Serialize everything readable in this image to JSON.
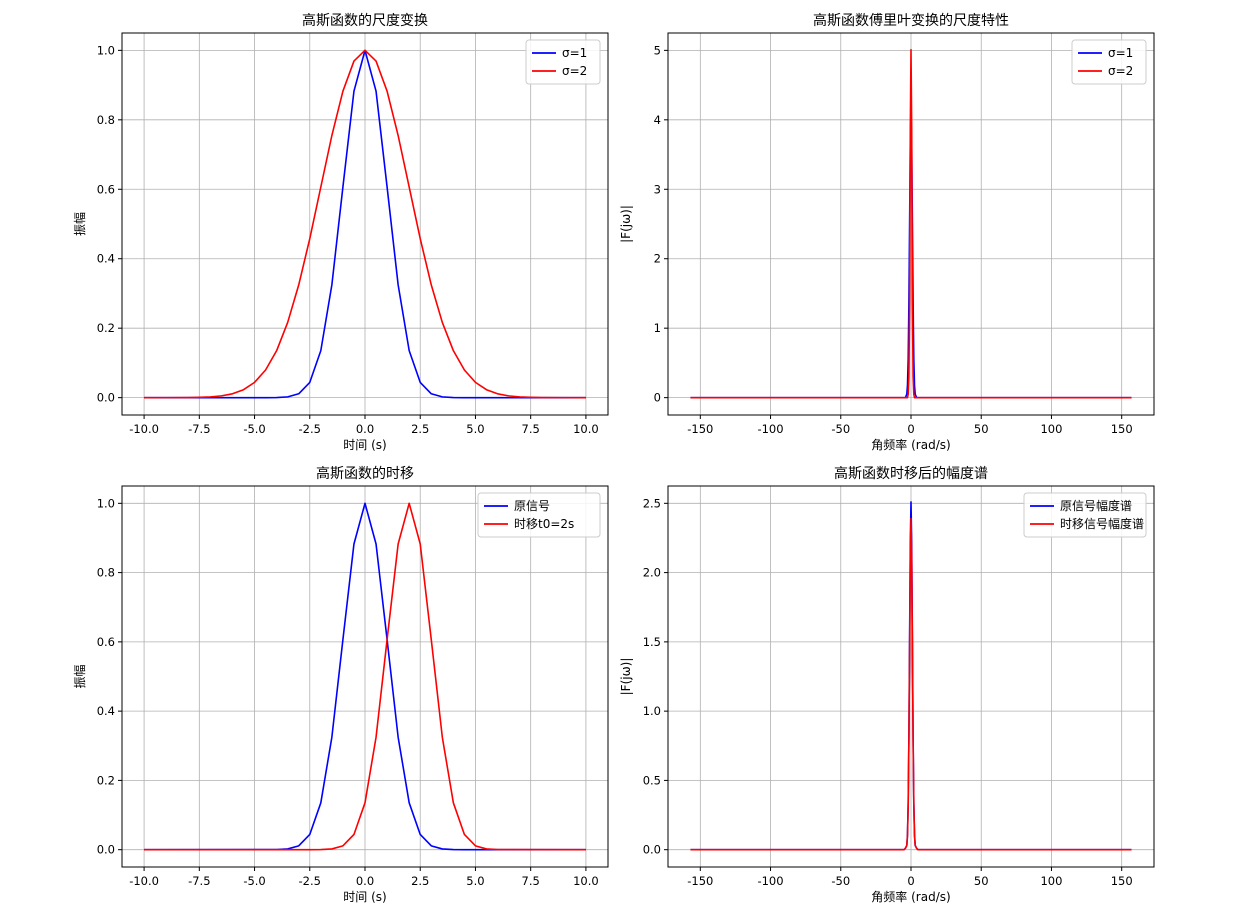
{
  "chart_data": [
    {
      "type": "line",
      "title": "高斯函数的尺度变换",
      "xlabel": "时间 (s)",
      "ylabel": "振幅",
      "xlim": [
        -11,
        11
      ],
      "ylim": [
        -0.05,
        1.05
      ],
      "xticks": [
        -10,
        -7.5,
        -5,
        -2.5,
        0,
        2.5,
        5,
        7.5,
        10
      ],
      "xtick_labels": [
        "-10.0",
        "-7.5",
        "-5.0",
        "-2.5",
        "0.0",
        "2.5",
        "5.0",
        "7.5",
        "10.0"
      ],
      "yticks": [
        0,
        0.2,
        0.4,
        0.6,
        0.8,
        1.0
      ],
      "ytick_labels": [
        "0.0",
        "0.2",
        "0.4",
        "0.6",
        "0.8",
        "1.0"
      ],
      "grid": true,
      "legend_position": "top-right",
      "x": [
        -10,
        -9,
        -8,
        -7.5,
        -7,
        -6.5,
        -6,
        -5.5,
        -5,
        -4.5,
        -4,
        -3.5,
        -3,
        -2.5,
        -2,
        -1.5,
        -1,
        -0.5,
        0,
        0.5,
        1,
        1.5,
        2,
        2.5,
        3,
        3.5,
        4,
        4.5,
        5,
        5.5,
        6,
        6.5,
        7,
        7.5,
        8,
        9,
        10
      ],
      "series": [
        {
          "name": "σ=1",
          "color": "#0000ff",
          "values": [
            0,
            0,
            0,
            0,
            0,
            0,
            0,
            0,
            0,
            0,
            0.0003,
            0.0022,
            0.0111,
            0.0439,
            0.1353,
            0.3247,
            0.6065,
            0.8825,
            1.0,
            0.8825,
            0.6065,
            0.3247,
            0.1353,
            0.0439,
            0.0111,
            0.0022,
            0.0003,
            0,
            0,
            0,
            0,
            0,
            0,
            0,
            0,
            0,
            0
          ]
        },
        {
          "name": "σ=2",
          "color": "#ff0000",
          "values": [
            0.0,
            4e-05,
            0.0003,
            0.0009,
            0.0022,
            0.0051,
            0.0111,
            0.0228,
            0.0439,
            0.0796,
            0.1353,
            0.2165,
            0.3247,
            0.4578,
            0.6065,
            0.7548,
            0.8825,
            0.9692,
            1.0,
            0.9692,
            0.8825,
            0.7548,
            0.6065,
            0.4578,
            0.3247,
            0.2165,
            0.1353,
            0.0796,
            0.0439,
            0.0228,
            0.0111,
            0.0051,
            0.0022,
            0.0009,
            0.0003,
            4e-05,
            0.0
          ]
        }
      ]
    },
    {
      "type": "line",
      "title": "高斯函数傅里叶变换的尺度特性",
      "xlabel": "角频率 (rad/s)",
      "ylabel": "|F(jω)|",
      "xlim": [
        -173,
        173
      ],
      "ylim": [
        -0.25,
        5.25
      ],
      "xticks": [
        -150,
        -100,
        -50,
        0,
        50,
        100,
        150
      ],
      "xtick_labels": [
        "-150",
        "-100",
        "-50",
        "0",
        "50",
        "100",
        "150"
      ],
      "yticks": [
        0,
        1,
        2,
        3,
        4,
        5
      ],
      "ytick_labels": [
        "0",
        "1",
        "2",
        "3",
        "4",
        "5"
      ],
      "grid": true,
      "legend_position": "top-right",
      "x": [
        -157,
        -5,
        -4,
        -3,
        -2.5,
        -2,
        -1.5,
        -1,
        -0.5,
        0,
        0.5,
        1,
        1.5,
        2,
        2.5,
        3,
        4,
        5,
        157
      ],
      "series": [
        {
          "name": "σ=1",
          "color": "#0000ff",
          "values": [
            0,
            0.0,
            0.0,
            0.05,
            0.18,
            0.55,
            1.35,
            2.5,
            3.62,
            4.12,
            3.62,
            2.5,
            1.35,
            0.55,
            0.18,
            0.05,
            0.0,
            0.0,
            0
          ]
        },
        {
          "name": "σ=2",
          "color": "#ff0000",
          "values": [
            0,
            0,
            0,
            0,
            0,
            0.05,
            0.3,
            1.35,
            3.85,
            5.01,
            3.85,
            1.35,
            0.3,
            0.05,
            0,
            0,
            0,
            0,
            0
          ]
        }
      ]
    },
    {
      "type": "line",
      "title": "高斯函数的时移",
      "xlabel": "时间 (s)",
      "ylabel": "振幅",
      "xlim": [
        -11,
        11
      ],
      "ylim": [
        -0.05,
        1.05
      ],
      "xticks": [
        -10,
        -7.5,
        -5,
        -2.5,
        0,
        2.5,
        5,
        7.5,
        10
      ],
      "xtick_labels": [
        "-10.0",
        "-7.5",
        "-5.0",
        "-2.5",
        "0.0",
        "2.5",
        "5.0",
        "7.5",
        "10.0"
      ],
      "yticks": [
        0,
        0.2,
        0.4,
        0.6,
        0.8,
        1.0
      ],
      "ytick_labels": [
        "0.0",
        "0.2",
        "0.4",
        "0.6",
        "0.8",
        "1.0"
      ],
      "grid": true,
      "legend_position": "top-right",
      "x": [
        -10,
        -4,
        -3.5,
        -3,
        -2.5,
        -2,
        -1.5,
        -1,
        -0.5,
        0,
        0.5,
        1,
        1.5,
        2,
        2.5,
        3,
        3.5,
        4,
        4.5,
        5,
        5.5,
        6,
        10
      ],
      "series": [
        {
          "name": "原信号",
          "color": "#0000ff",
          "values": [
            0,
            0.0003,
            0.0022,
            0.0111,
            0.0439,
            0.1353,
            0.3247,
            0.6065,
            0.8825,
            1.0,
            0.8825,
            0.6065,
            0.3247,
            0.1353,
            0.0439,
            0.0111,
            0.0022,
            0.0003,
            0,
            0,
            0,
            0,
            0
          ]
        },
        {
          "name": "时移t0=2s",
          "color": "#ff0000",
          "values": [
            0,
            0,
            0,
            0,
            0,
            0.0003,
            0.0022,
            0.0111,
            0.0439,
            0.1353,
            0.3247,
            0.6065,
            0.8825,
            1.0,
            0.8825,
            0.6065,
            0.3247,
            0.1353,
            0.0439,
            0.0111,
            0.0022,
            0.0003,
            0
          ]
        }
      ]
    },
    {
      "type": "line",
      "title": "高斯函数时移后的幅度谱",
      "xlabel": "角频率 (rad/s)",
      "ylabel": "|F(jω)|",
      "xlim": [
        -173,
        173
      ],
      "ylim": [
        -0.125,
        2.625
      ],
      "xticks": [
        -150,
        -100,
        -50,
        0,
        50,
        100,
        150
      ],
      "xtick_labels": [
        "-150",
        "-100",
        "-50",
        "0",
        "50",
        "100",
        "150"
      ],
      "yticks": [
        0,
        0.5,
        1.0,
        1.5,
        2.0,
        2.5
      ],
      "ytick_labels": [
        "0.0",
        "0.5",
        "1.0",
        "1.5",
        "2.0",
        "2.5"
      ],
      "grid": true,
      "legend_position": "top-right",
      "x": [
        -157,
        -5,
        -4,
        -3,
        -2.5,
        -2,
        -1.5,
        -1,
        -0.5,
        0,
        0.5,
        1,
        1.5,
        2,
        2.5,
        3,
        4,
        5,
        157
      ],
      "series": [
        {
          "name": "原信号幅度谱",
          "color": "#0000ff",
          "values": [
            0,
            0,
            0.01,
            0.03,
            0.11,
            0.34,
            0.81,
            1.52,
            2.21,
            2.51,
            2.21,
            1.52,
            0.81,
            0.34,
            0.11,
            0.03,
            0.01,
            0,
            0
          ]
        },
        {
          "name": "时移信号幅度谱",
          "color": "#ff0000",
          "values": [
            0,
            0,
            0.01,
            0.03,
            0.1,
            0.32,
            0.78,
            1.45,
            2.1,
            2.39,
            2.1,
            1.45,
            0.78,
            0.32,
            0.1,
            0.03,
            0.01,
            0,
            0
          ]
        }
      ]
    }
  ]
}
